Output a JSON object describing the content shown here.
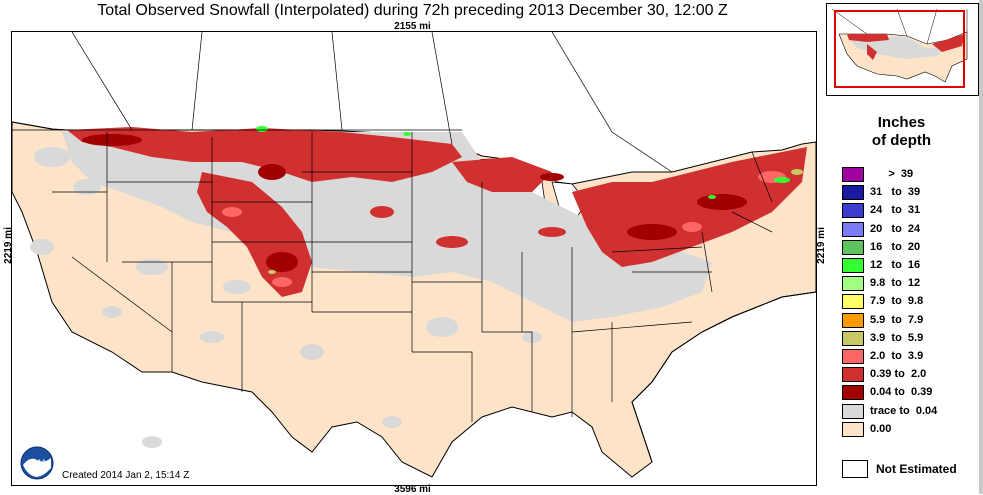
{
  "title": "Total Observed Snowfall (Interpolated) during 72h preceding 2013 December 30, 12:00 Z",
  "distances": {
    "top": "2155 mi",
    "bottom": "3596 mi",
    "left": "2219 mi",
    "right": "2219 mi"
  },
  "created": "Created 2014 Jan 2, 15:14 Z",
  "logo_text": "NOAA",
  "legend": {
    "title": "Inches\nof depth",
    "items": [
      {
        "label": "      >  39",
        "color": "#a000a0"
      },
      {
        "label": "31   to  39",
        "color": "#1a1aa0"
      },
      {
        "label": "24   to  31",
        "color": "#3c3cd0"
      },
      {
        "label": "20   to  24",
        "color": "#7b7bf5"
      },
      {
        "label": "16   to  20",
        "color": "#5fc45f"
      },
      {
        "label": "12   to  16",
        "color": "#33ff33"
      },
      {
        "label": "9.8  to  12",
        "color": "#a0ff80"
      },
      {
        "label": "7.9  to  9.8",
        "color": "#ffff66"
      },
      {
        "label": "5.9  to  7.9",
        "color": "#ff9900"
      },
      {
        "label": "3.9  to  5.9",
        "color": "#c8c864"
      },
      {
        "label": "2.0  to  3.9",
        "color": "#ff6666"
      },
      {
        "label": "0.39 to  2.0",
        "color": "#d03030"
      },
      {
        "label": "0.04 to  0.39",
        "color": "#a00000"
      },
      {
        "label": "trace to  0.04",
        "color": "#d9d9d9"
      },
      {
        "label": "0.00",
        "color": "#fde3c8"
      }
    ],
    "not_estimated": "Not Estimated"
  },
  "colors": {
    "land_no_snow": "#fde3c8",
    "trace": "#d9d9d9",
    "light_red": "#d03030",
    "dark_red": "#a00000",
    "pink": "#ff6666",
    "inset_box": "#e00000"
  }
}
